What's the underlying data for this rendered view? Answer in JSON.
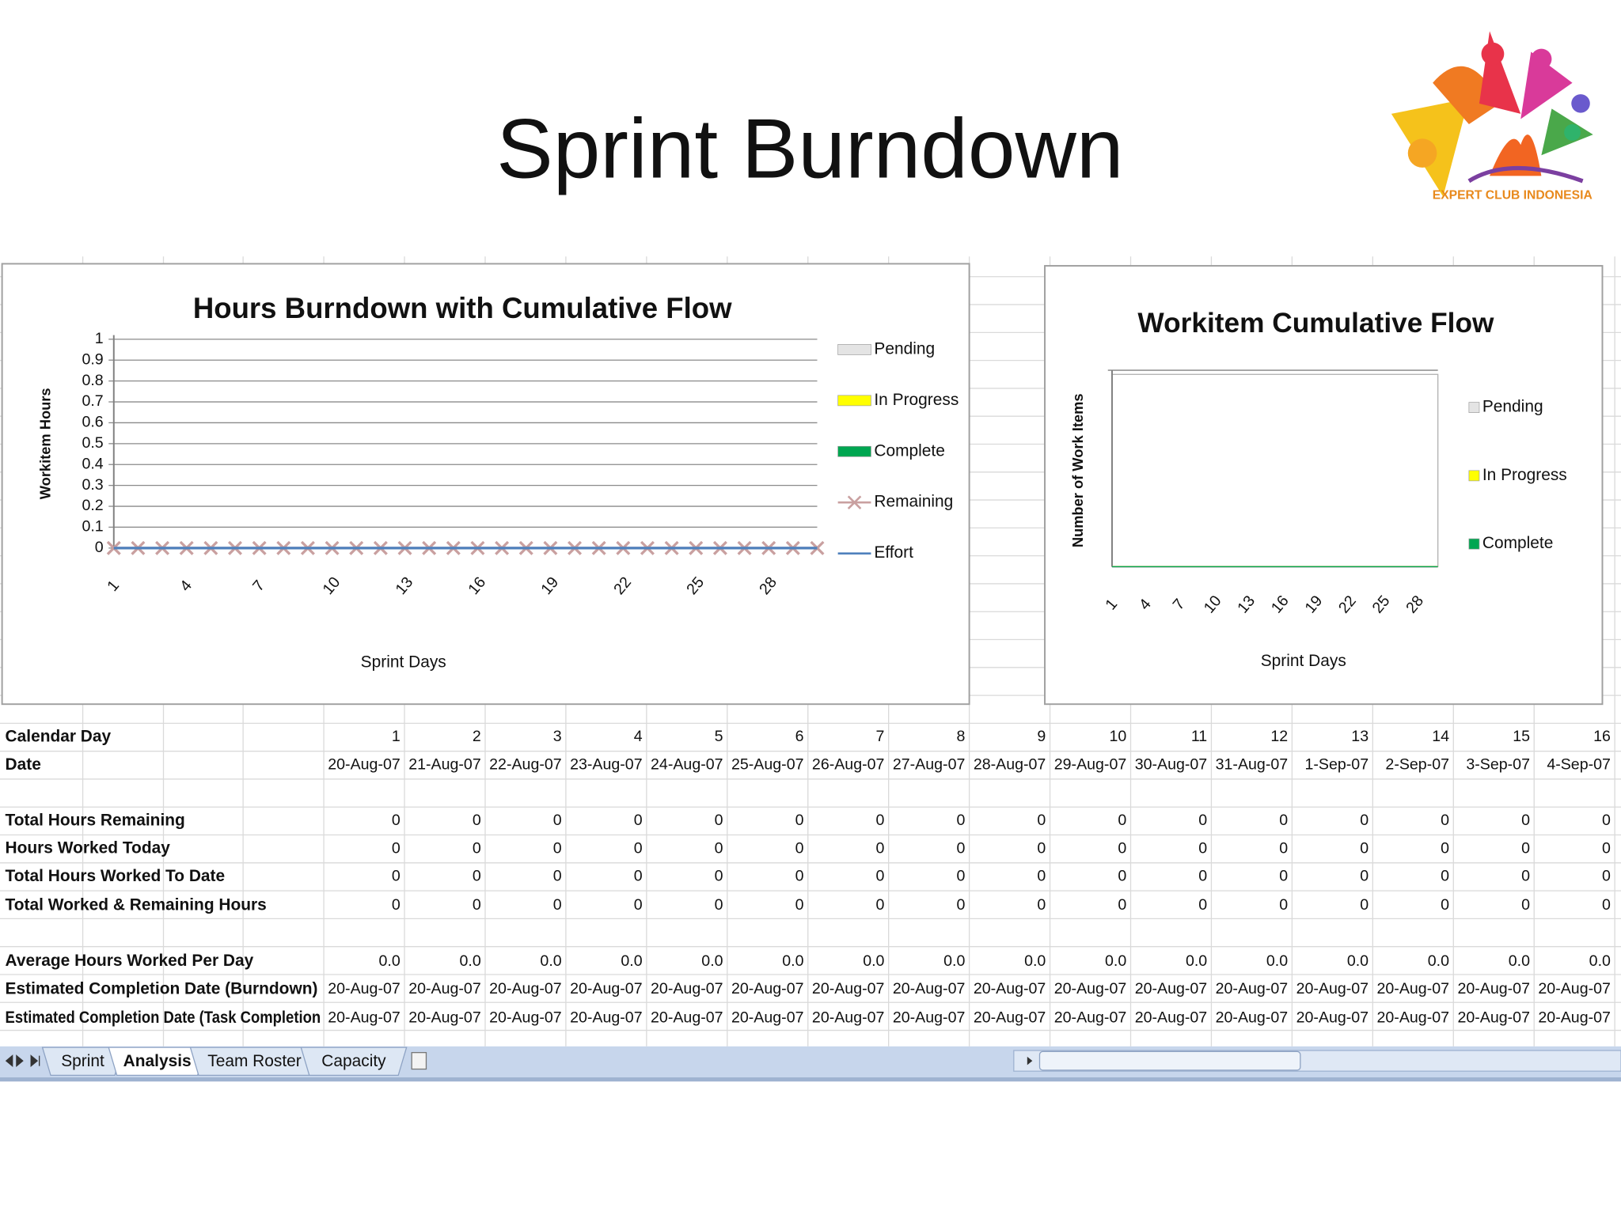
{
  "title": "Sprint Burndown",
  "logo_text": "EXPERT CLUB INDONESIA",
  "chart_data": [
    {
      "type": "combo",
      "title": "Hours Burndown with Cumulative Flow",
      "y_label": "Workitem Hours",
      "x_label": "Sprint Days",
      "categories": [
        1,
        null,
        null,
        4,
        null,
        null,
        7,
        null,
        null,
        10,
        null,
        null,
        13,
        null,
        null,
        16,
        null,
        null,
        19,
        null,
        null,
        22,
        null,
        null,
        25,
        null,
        null,
        28,
        null,
        null
      ],
      "ylim": [
        0,
        1
      ],
      "yticks": [
        0,
        0.1,
        0.2,
        0.3,
        0.4,
        0.5,
        0.6,
        0.7,
        0.8,
        0.9,
        1
      ],
      "grid": true,
      "legend": "right",
      "series": [
        {
          "name": "Pending",
          "color": "#e4e4e4",
          "type": "area",
          "values": [
            0,
            0,
            0,
            0,
            0,
            0,
            0,
            0,
            0,
            0,
            0,
            0,
            0,
            0,
            0,
            0,
            0,
            0,
            0,
            0,
            0,
            0,
            0,
            0,
            0,
            0,
            0,
            0,
            0,
            0
          ]
        },
        {
          "name": "In Progress",
          "color": "#ffff00",
          "type": "area",
          "values": [
            0,
            0,
            0,
            0,
            0,
            0,
            0,
            0,
            0,
            0,
            0,
            0,
            0,
            0,
            0,
            0,
            0,
            0,
            0,
            0,
            0,
            0,
            0,
            0,
            0,
            0,
            0,
            0,
            0,
            0
          ]
        },
        {
          "name": "Complete",
          "color": "#00a651",
          "type": "area",
          "values": [
            0,
            0,
            0,
            0,
            0,
            0,
            0,
            0,
            0,
            0,
            0,
            0,
            0,
            0,
            0,
            0,
            0,
            0,
            0,
            0,
            0,
            0,
            0,
            0,
            0,
            0,
            0,
            0,
            0,
            0
          ]
        },
        {
          "name": "Remaining",
          "color": "#c9a0a0",
          "type": "line",
          "marker": "x",
          "values": [
            0,
            0,
            0,
            0,
            0,
            0,
            0,
            0,
            0,
            0,
            0,
            0,
            0,
            0,
            0,
            0,
            0,
            0,
            0,
            0,
            0,
            0,
            0,
            0,
            0,
            0,
            0,
            0,
            0,
            0
          ]
        },
        {
          "name": "Effort",
          "color": "#4f81bd",
          "type": "line",
          "values": [
            0,
            0,
            0,
            0,
            0,
            0,
            0,
            0,
            0,
            0,
            0,
            0,
            0,
            0,
            0,
            0,
            0,
            0,
            0,
            0,
            0,
            0,
            0,
            0,
            0,
            0,
            0,
            0,
            0,
            0
          ]
        }
      ]
    },
    {
      "type": "area",
      "title": "Workitem Cumulative Flow",
      "y_label": "Number of Work Items",
      "x_label": "Sprint Days",
      "categories": [
        1,
        null,
        null,
        4,
        null,
        null,
        7,
        null,
        null,
        10,
        null,
        null,
        13,
        null,
        null,
        16,
        null,
        null,
        19,
        null,
        null,
        22,
        null,
        null,
        25,
        null,
        null,
        28,
        null,
        null
      ],
      "legend": "right",
      "series": [
        {
          "name": "Pending",
          "color": "#e4e4e4",
          "values": [
            0,
            0,
            0,
            0,
            0,
            0,
            0,
            0,
            0,
            0,
            0,
            0,
            0,
            0,
            0,
            0,
            0,
            0,
            0,
            0,
            0,
            0,
            0,
            0,
            0,
            0,
            0,
            0,
            0,
            0
          ]
        },
        {
          "name": "In Progress",
          "color": "#ffff00",
          "values": [
            0,
            0,
            0,
            0,
            0,
            0,
            0,
            0,
            0,
            0,
            0,
            0,
            0,
            0,
            0,
            0,
            0,
            0,
            0,
            0,
            0,
            0,
            0,
            0,
            0,
            0,
            0,
            0,
            0,
            0
          ]
        },
        {
          "name": "Complete",
          "color": "#00a651",
          "values": [
            0,
            0,
            0,
            0,
            0,
            0,
            0,
            0,
            0,
            0,
            0,
            0,
            0,
            0,
            0,
            0,
            0,
            0,
            0,
            0,
            0,
            0,
            0,
            0,
            0,
            0,
            0,
            0,
            0,
            0
          ]
        }
      ]
    }
  ],
  "table": {
    "rows": [
      {
        "label": "Calendar Day",
        "cells": [
          1,
          2,
          3,
          4,
          5,
          6,
          7,
          8,
          9,
          10,
          11,
          12,
          13,
          14,
          15,
          16
        ]
      },
      {
        "label": "Date",
        "cells": [
          "20-Aug-07",
          "21-Aug-07",
          "22-Aug-07",
          "23-Aug-07",
          "24-Aug-07",
          "25-Aug-07",
          "26-Aug-07",
          "27-Aug-07",
          "28-Aug-07",
          "29-Aug-07",
          "30-Aug-07",
          "31-Aug-07",
          "1-Sep-07",
          "2-Sep-07",
          "3-Sep-07",
          "4-Sep-07"
        ]
      },
      {
        "label": "Total Hours Remaining",
        "cells": [
          0,
          0,
          0,
          0,
          0,
          0,
          0,
          0,
          0,
          0,
          0,
          0,
          0,
          0,
          0,
          0
        ]
      },
      {
        "label": "Hours Worked Today",
        "cells": [
          0,
          0,
          0,
          0,
          0,
          0,
          0,
          0,
          0,
          0,
          0,
          0,
          0,
          0,
          0,
          0
        ]
      },
      {
        "label": "Total Hours Worked To Date",
        "cells": [
          0,
          0,
          0,
          0,
          0,
          0,
          0,
          0,
          0,
          0,
          0,
          0,
          0,
          0,
          0,
          0
        ]
      },
      {
        "label": "Total Worked & Remaining Hours",
        "cells": [
          0,
          0,
          0,
          0,
          0,
          0,
          0,
          0,
          0,
          0,
          0,
          0,
          0,
          0,
          0,
          0
        ]
      },
      {
        "label": "Average Hours Worked Per Day",
        "cells": [
          "0.0",
          "0.0",
          "0.0",
          "0.0",
          "0.0",
          "0.0",
          "0.0",
          "0.0",
          "0.0",
          "0.0",
          "0.0",
          "0.0",
          "0.0",
          "0.0",
          "0.0",
          "0.0"
        ]
      },
      {
        "label": "Estimated Completion Date (Burndown)",
        "cells": [
          "20-Aug-07",
          "20-Aug-07",
          "20-Aug-07",
          "20-Aug-07",
          "20-Aug-07",
          "20-Aug-07",
          "20-Aug-07",
          "20-Aug-07",
          "20-Aug-07",
          "20-Aug-07",
          "20-Aug-07",
          "20-Aug-07",
          "20-Aug-07",
          "20-Aug-07",
          "20-Aug-07",
          "20-Aug-07"
        ]
      },
      {
        "label": "Estimated Completion Date (Task Completion",
        "cells": [
          "20-Aug-07",
          "20-Aug-07",
          "20-Aug-07",
          "20-Aug-07",
          "20-Aug-07",
          "20-Aug-07",
          "20-Aug-07",
          "20-Aug-07",
          "20-Aug-07",
          "20-Aug-07",
          "20-Aug-07",
          "20-Aug-07",
          "20-Aug-07",
          "20-Aug-07",
          "20-Aug-07",
          "20-Aug-07"
        ]
      }
    ]
  },
  "tabs": [
    "Sprint",
    "Analysis",
    "Team Roster",
    "Capacity"
  ],
  "active_tab": 1
}
